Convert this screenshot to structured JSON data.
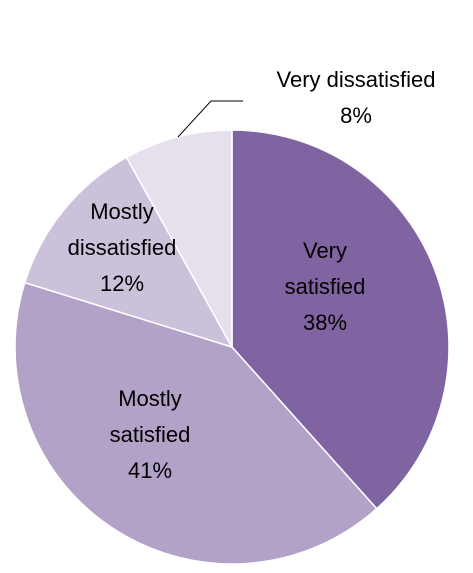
{
  "chart_data": {
    "type": "pie",
    "title": "",
    "start_angle_deg": 0,
    "direction": "clockwise",
    "slices": [
      {
        "label_lines": [
          "Very",
          "satisfied"
        ],
        "value": 38,
        "value_label": "38%",
        "color": "#8064A2"
      },
      {
        "label_lines": [
          "Mostly",
          "satisfied"
        ],
        "value": 41,
        "value_label": "41%",
        "color": "#B3A2C7"
      },
      {
        "label_lines": [
          "Mostly",
          "dissatisfied"
        ],
        "value": 12,
        "value_label": "12%",
        "color": "#CCC1DA"
      },
      {
        "label_lines": [
          "Very dissatisfied"
        ],
        "value": 8,
        "value_label": "8%",
        "color": "#E6E0EC",
        "label_outside": true,
        "leader_line": true
      }
    ],
    "slice_border_color": "#FFFFFF"
  }
}
